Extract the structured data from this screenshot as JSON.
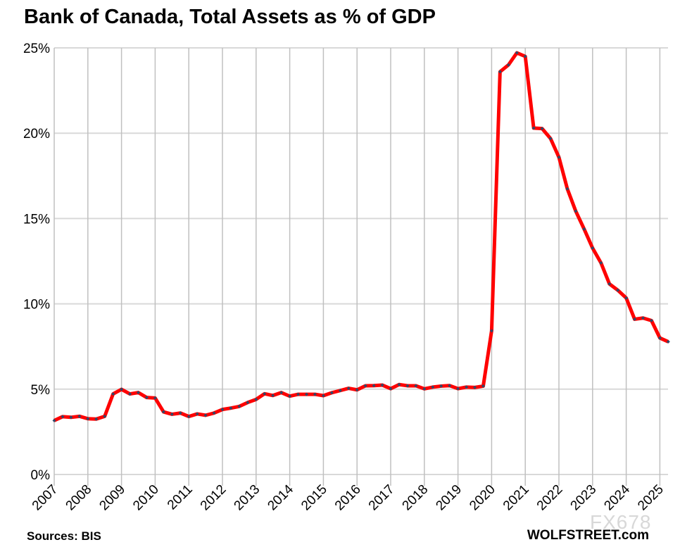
{
  "chart_data": {
    "type": "line",
    "title": "Bank of Canada, Total Assets as % of GDP",
    "xlabel": "",
    "ylabel": "",
    "xlim": [
      2007,
      2025.25
    ],
    "ylim": [
      0,
      25
    ],
    "x_ticks": [
      "2007",
      "2008",
      "2009",
      "2010",
      "2011",
      "2012",
      "2013",
      "2014",
      "2015",
      "2016",
      "2017",
      "2018",
      "2019",
      "2020",
      "2021",
      "2022",
      "2023",
      "2024",
      "2025"
    ],
    "y_ticks": [
      "0%",
      "5%",
      "10%",
      "15%",
      "20%",
      "25%"
    ],
    "grid": true,
    "legend": "none",
    "series": [
      {
        "color": "#ff0000",
        "marker_color": "#2e4a6b",
        "x": [
          2007,
          2007.25,
          2007.5,
          2007.75,
          2008,
          2008.25,
          2008.5,
          2008.75,
          2009,
          2009.25,
          2009.5,
          2009.75,
          2010,
          2010.25,
          2010.5,
          2010.75,
          2011,
          2011.25,
          2011.5,
          2011.75,
          2012,
          2012.25,
          2012.5,
          2012.75,
          2013,
          2013.25,
          2013.5,
          2013.75,
          2014,
          2014.25,
          2014.5,
          2014.75,
          2015,
          2015.25,
          2015.5,
          2015.75,
          2016,
          2016.25,
          2016.5,
          2016.75,
          2017,
          2017.25,
          2017.5,
          2017.75,
          2018,
          2018.25,
          2018.5,
          2018.75,
          2019,
          2019.25,
          2019.5,
          2019.75,
          2020,
          2020.25,
          2020.5,
          2020.75,
          2021,
          2021.25,
          2021.5,
          2021.75,
          2022,
          2022.25,
          2022.5,
          2022.75,
          2023,
          2023.25,
          2023.5,
          2023.75,
          2024,
          2024.25,
          2024.5,
          2024.75,
          2025,
          2025.25
        ],
        "values": [
          3.16,
          3.39,
          3.35,
          3.41,
          3.27,
          3.25,
          3.41,
          4.72,
          4.99,
          4.72,
          4.8,
          4.51,
          4.48,
          3.67,
          3.53,
          3.6,
          3.4,
          3.55,
          3.47,
          3.6,
          3.81,
          3.89,
          3.99,
          4.22,
          4.4,
          4.73,
          4.63,
          4.8,
          4.59,
          4.7,
          4.7,
          4.7,
          4.62,
          4.79,
          4.92,
          5.05,
          4.96,
          5.2,
          5.21,
          5.24,
          5.03,
          5.27,
          5.2,
          5.2,
          5.02,
          5.12,
          5.18,
          5.21,
          5.03,
          5.12,
          5.1,
          5.18,
          8.42,
          23.6,
          24.0,
          24.71,
          24.5,
          20.3,
          20.27,
          19.69,
          18.59,
          16.74,
          15.43,
          14.38,
          13.27,
          12.4,
          11.17,
          10.8,
          10.34,
          9.1,
          9.17,
          9.02,
          8.0,
          7.78
        ]
      }
    ]
  },
  "footer": {
    "source": "Sources: BIS",
    "brand": "WOLFSTREET.com",
    "watermark": "FX678"
  }
}
